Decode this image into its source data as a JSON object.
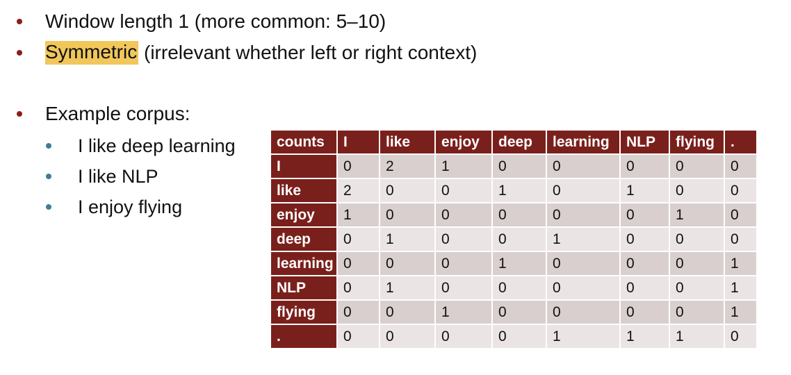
{
  "bullets": {
    "main_1": "Window length 1 (more common: 5–10)",
    "main_2_highlight": "Symmetric",
    "main_2_rest": " (irrelevant whether left or right context)",
    "main_3": "Example corpus:",
    "sub_items": [
      "I like deep learning",
      "I like NLP",
      "I enjoy flying"
    ]
  },
  "table": {
    "headers": [
      "counts",
      "I",
      "like",
      "enjoy",
      "deep",
      "learning",
      "NLP",
      "flying",
      "."
    ],
    "rows": [
      {
        "label": "I",
        "values": [
          "0",
          "2",
          "1",
          "0",
          "0",
          "0",
          "0",
          "0"
        ]
      },
      {
        "label": "like",
        "values": [
          "2",
          "0",
          "0",
          "1",
          "0",
          "1",
          "0",
          "0"
        ]
      },
      {
        "label": "enjoy",
        "values": [
          "1",
          "0",
          "0",
          "0",
          "0",
          "0",
          "1",
          "0"
        ]
      },
      {
        "label": "deep",
        "values": [
          "0",
          "1",
          "0",
          "0",
          "1",
          "0",
          "0",
          "0"
        ]
      },
      {
        "label": "learning",
        "values": [
          "0",
          "0",
          "0",
          "1",
          "0",
          "0",
          "0",
          "1"
        ]
      },
      {
        "label": "NLP",
        "values": [
          "0",
          "1",
          "0",
          "0",
          "0",
          "0",
          "0",
          "1"
        ]
      },
      {
        "label": "flying",
        "values": [
          "0",
          "0",
          "1",
          "0",
          "0",
          "0",
          "0",
          "1"
        ]
      },
      {
        "label": ".",
        "values": [
          "0",
          "0",
          "0",
          "0",
          "1",
          "1",
          "1",
          "0"
        ]
      }
    ]
  },
  "colors": {
    "header_bg": "#7a201c",
    "row_dark": "#d9cfcf",
    "row_light": "#eae4e4",
    "highlight": "#f1c75b",
    "main_bullet": "#8b1f1b",
    "sub_bullet": "#3c7f94"
  }
}
